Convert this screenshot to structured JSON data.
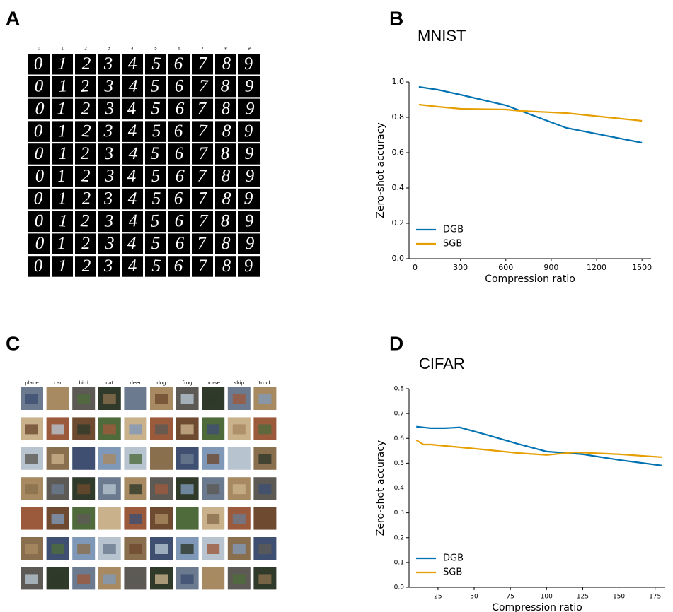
{
  "panel_labels": [
    "A",
    "B",
    "C",
    "D"
  ],
  "mnist_grid": {
    "column_labels": [
      "0",
      "1",
      "2",
      "3",
      "4",
      "5",
      "6",
      "7",
      "8",
      "9"
    ]
  },
  "cifar_grid": {
    "column_labels": [
      "plane",
      "car",
      "bird",
      "cat",
      "deer",
      "dog",
      "frog",
      "horse",
      "ship",
      "truck"
    ]
  },
  "chart_data": [
    {
      "type": "line",
      "title": "MNIST",
      "x_label": "Compression ratio",
      "y_label": "Zero-shot accuracy",
      "xlim": [
        -40,
        1560
      ],
      "xticks": [
        0,
        300,
        600,
        900,
        1200,
        1500
      ],
      "ylim": [
        0,
        1.0
      ],
      "yticks": [
        {
          "value": 0,
          "label": "0.0"
        },
        {
          "value": 0.2,
          "label": "0.2"
        },
        {
          "value": 0.4,
          "label": "0.4"
        },
        {
          "value": 0.6,
          "label": "0.6"
        },
        {
          "value": 0.8,
          "label": "0.8"
        },
        {
          "value": 1.0,
          "label": "1.0"
        }
      ],
      "legend": "lower left",
      "series": [
        {
          "name": "DGB",
          "color": "#0072b2",
          "x": [
            25,
            150,
            300,
            600,
            700,
            1000,
            1500
          ],
          "values": [
            0.972,
            0.956,
            0.928,
            0.868,
            0.836,
            0.74,
            0.656
          ]
        },
        {
          "name": "SGB",
          "color": "#e69f00",
          "x": [
            25,
            150,
            300,
            600,
            700,
            1000,
            1500
          ],
          "values": [
            0.872,
            0.86,
            0.848,
            0.844,
            0.836,
            0.824,
            0.78
          ]
        }
      ]
    },
    {
      "type": "line",
      "title": "CIFAR",
      "x_label": "Compression ratio",
      "y_label": "Zero-shot accuracy",
      "xlim": [
        5,
        182
      ],
      "xticks": [
        25,
        50,
        75,
        100,
        125,
        150,
        175
      ],
      "ylim": [
        0,
        0.8
      ],
      "yticks": [
        {
          "value": 0,
          "label": "0.0"
        },
        {
          "value": 0.1,
          "label": "0.1"
        },
        {
          "value": 0.2,
          "label": "0.2"
        },
        {
          "value": 0.3,
          "label": "0.3"
        },
        {
          "value": 0.4,
          "label": "0.4"
        },
        {
          "value": 0.5,
          "label": "0.5"
        },
        {
          "value": 0.6,
          "label": "0.6"
        },
        {
          "value": 0.7,
          "label": "0.7"
        },
        {
          "value": 0.8,
          "label": "0.8"
        }
      ],
      "legend": "lower left",
      "series": [
        {
          "name": "DGB",
          "color": "#0072b2",
          "x": [
            10,
            15,
            20,
            30,
            40,
            60,
            80,
            100,
            125,
            150,
            180
          ],
          "values": [
            0.647,
            0.644,
            0.641,
            0.641,
            0.644,
            0.612,
            0.578,
            0.547,
            0.536,
            0.513,
            0.49
          ]
        },
        {
          "name": "SGB",
          "color": "#e69f00",
          "x": [
            10,
            15,
            20,
            40,
            60,
            80,
            100,
            120,
            150,
            180
          ],
          "values": [
            0.593,
            0.575,
            0.575,
            0.564,
            0.553,
            0.541,
            0.533,
            0.544,
            0.536,
            0.524
          ]
        }
      ]
    }
  ]
}
